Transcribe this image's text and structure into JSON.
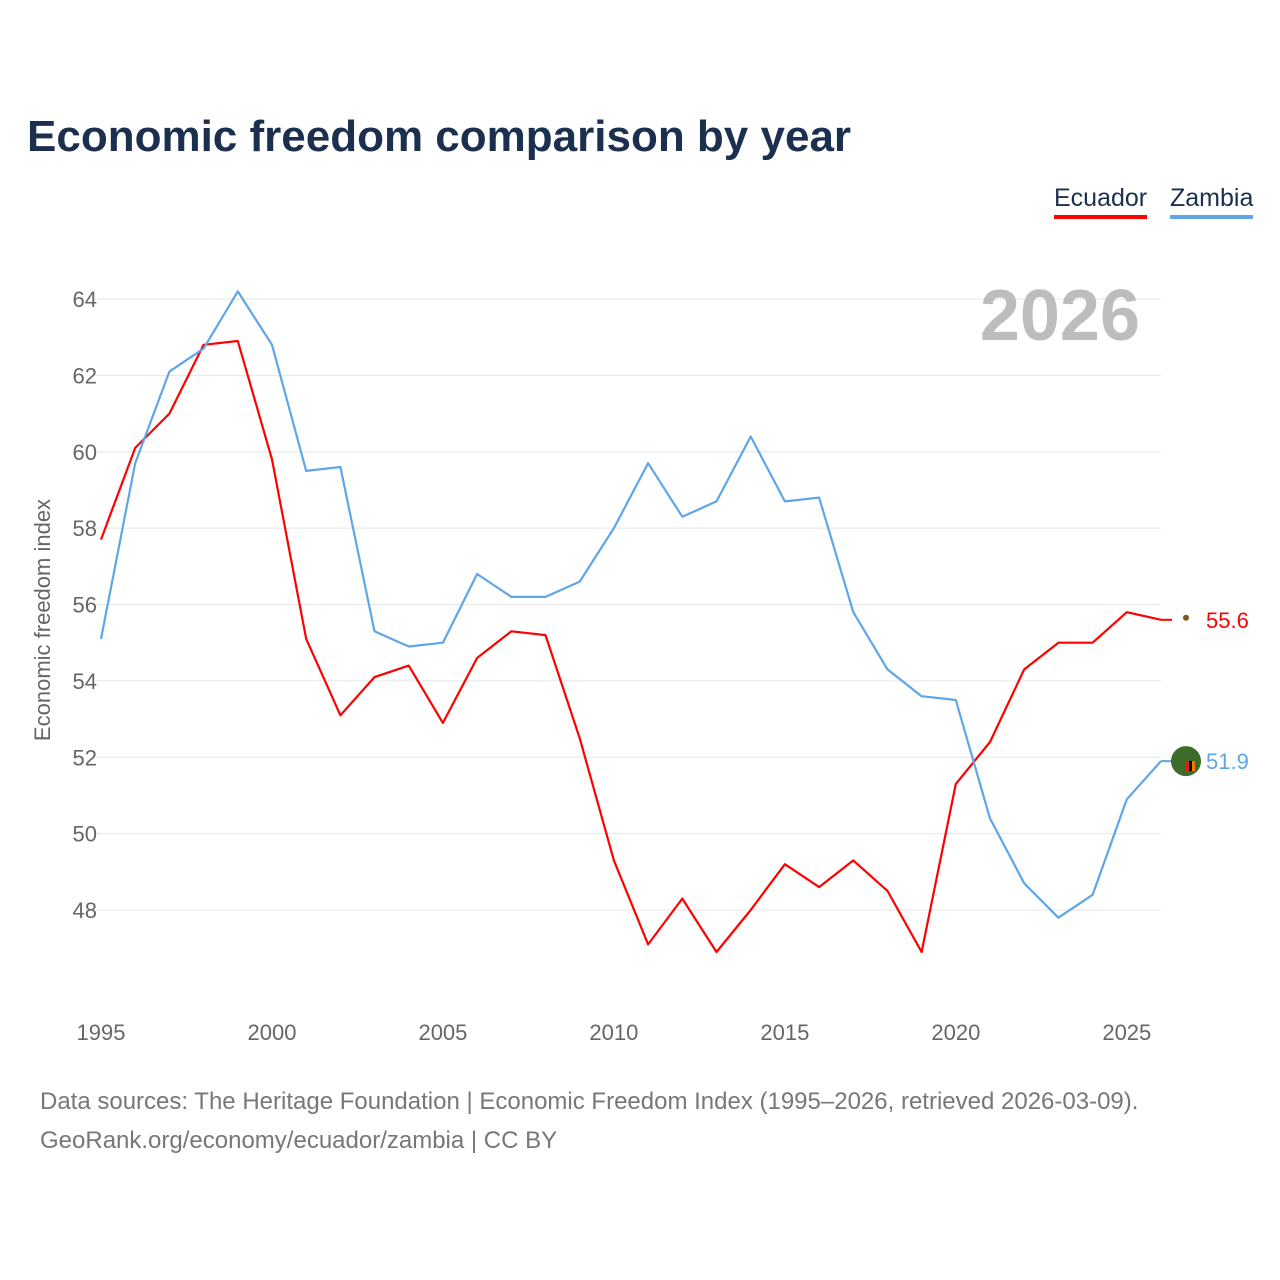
{
  "title": "Economic freedom comparison by year",
  "legend": [
    {
      "name": "Ecuador",
      "color": "#ff0000"
    },
    {
      "name": "Zambia",
      "color": "#5ea6e8"
    }
  ],
  "footer": {
    "line1": "Data sources: The Heritage Foundation | Economic Freedom Index (1995–2026, retrieved 2026-03-09).",
    "line2": "GeoRank.org/economy/ecuador/zambia | CC BY"
  },
  "chart_data": {
    "type": "line",
    "title": "Economic freedom comparison by year",
    "ylabel": "Economic freedom index",
    "xlabel": "",
    "year_label": "2026",
    "ylim": [
      46,
      64.5
    ],
    "xlim": [
      1995,
      2026
    ],
    "yticks": [
      "48",
      "50",
      "52",
      "54",
      "56",
      "58",
      "60",
      "62",
      "64"
    ],
    "xticks": [
      "1995",
      "2000",
      "2005",
      "2010",
      "2015",
      "2020",
      "2025"
    ],
    "grid": true,
    "x": [
      1995,
      1996,
      1997,
      1998,
      1999,
      2000,
      2001,
      2002,
      2003,
      2004,
      2005,
      2006,
      2007,
      2008,
      2009,
      2010,
      2011,
      2012,
      2013,
      2014,
      2015,
      2016,
      2017,
      2018,
      2019,
      2020,
      2021,
      2022,
      2023,
      2024,
      2025,
      2026
    ],
    "series": [
      {
        "name": "Ecuador",
        "color": "#ff0000",
        "end_label": "55.6",
        "values": [
          57.7,
          60.1,
          61.0,
          62.8,
          62.9,
          59.8,
          55.1,
          53.1,
          54.1,
          54.4,
          52.9,
          54.6,
          55.3,
          55.2,
          52.5,
          49.3,
          47.1,
          48.3,
          46.9,
          48.0,
          49.2,
          48.6,
          49.3,
          48.5,
          46.9,
          51.3,
          52.4,
          54.3,
          55.0,
          55.0,
          55.8,
          55.6
        ]
      },
      {
        "name": "Zambia",
        "color": "#5ea6e8",
        "end_label": "51.9",
        "values": [
          55.1,
          59.7,
          62.1,
          62.7,
          64.2,
          62.8,
          59.5,
          59.6,
          55.3,
          54.9,
          55.0,
          56.8,
          56.2,
          56.2,
          56.6,
          58.0,
          59.7,
          58.3,
          58.7,
          60.4,
          58.7,
          58.8,
          55.8,
          54.3,
          53.6,
          53.5,
          50.4,
          48.7,
          47.8,
          48.4,
          50.9,
          51.9
        ]
      }
    ]
  }
}
